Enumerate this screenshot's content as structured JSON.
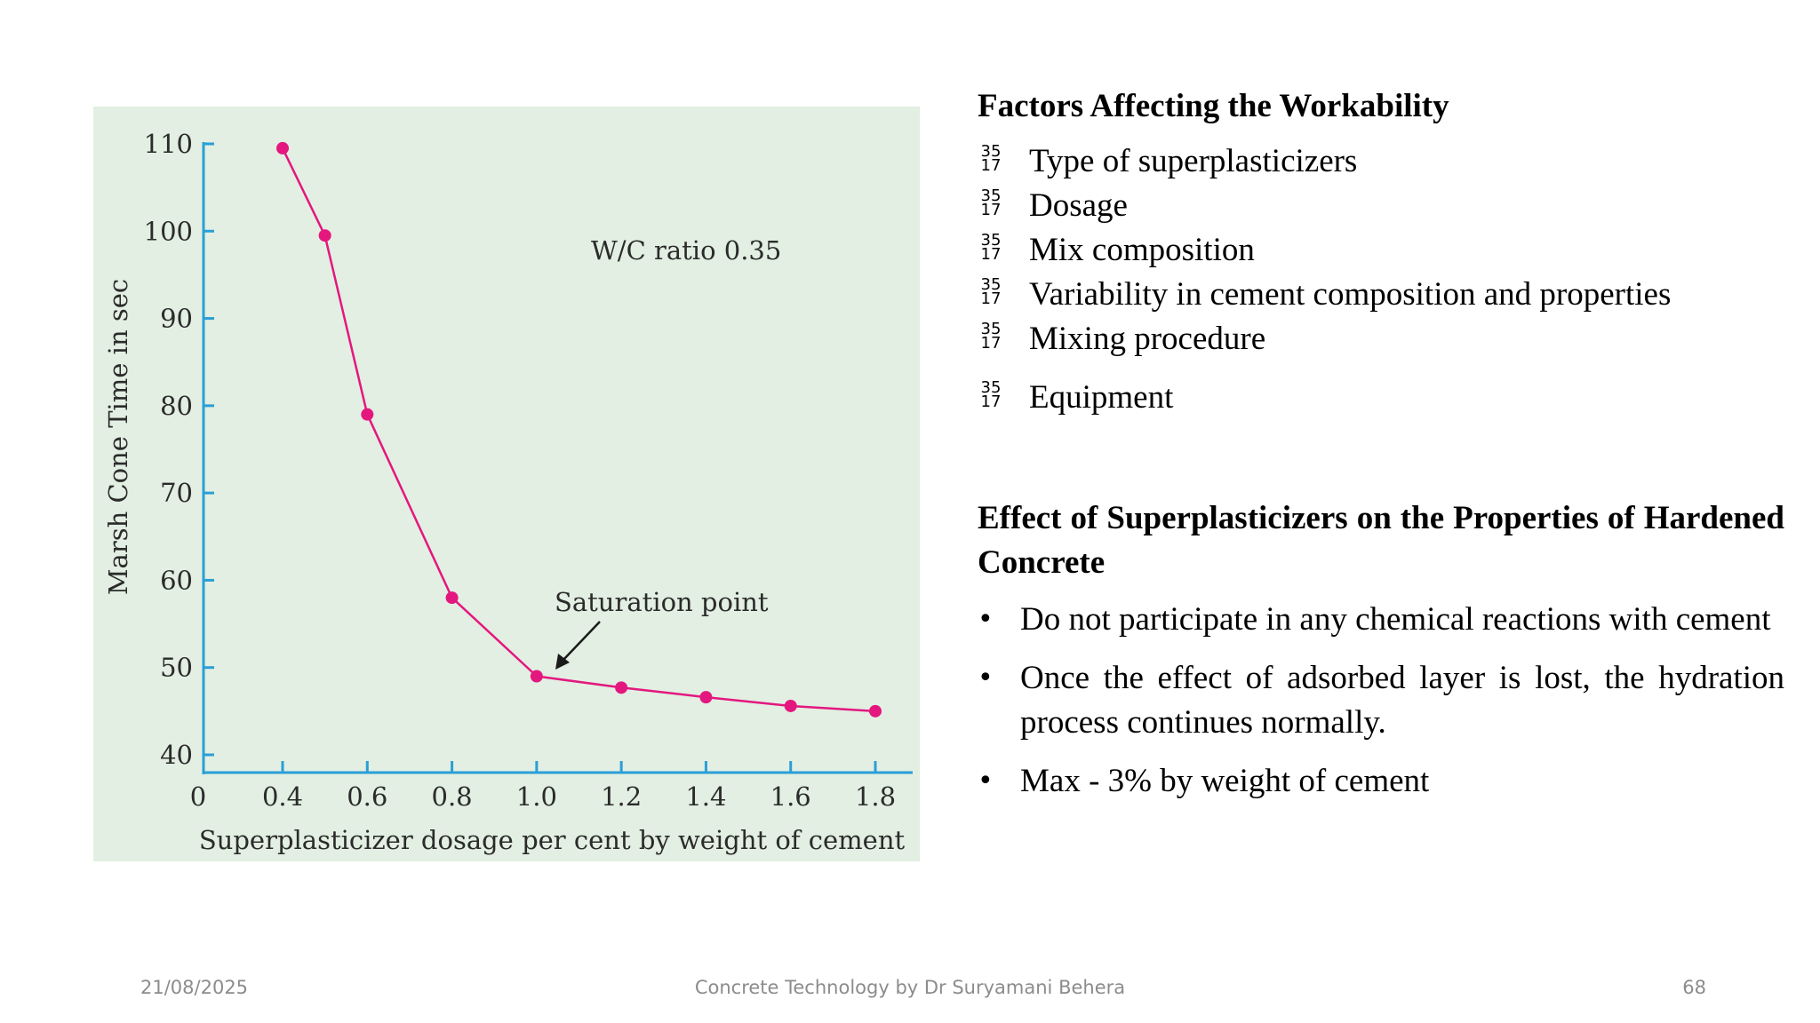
{
  "chart_data": {
    "type": "line",
    "xlabel": "Superplasticizer dosage per cent by weight of cement",
    "ylabel": "Marsh Cone Time in sec",
    "x_ticks": [
      "0",
      "0.4",
      "0.6",
      "0.8",
      "1.0",
      "1.2",
      "1.4",
      "1.6",
      "1.8"
    ],
    "y_ticks": [
      "40",
      "50",
      "60",
      "70",
      "80",
      "90",
      "100",
      "110"
    ],
    "ylim": [
      40,
      110
    ],
    "annotation_label": "W/C ratio 0.35",
    "saturation_label": "Saturation point",
    "saturation_x": 1.0,
    "line_color": "#e4177f",
    "axis_color": "#2a9fd6",
    "x": [
      0.4,
      0.5,
      0.6,
      0.8,
      1.0,
      1.2,
      1.4,
      1.6,
      1.8
    ],
    "y": [
      109.5,
      99.5,
      79,
      58,
      49,
      47.7,
      46.6,
      45.6,
      45
    ]
  },
  "factors": {
    "title": "Factors Affecting the Workability",
    "glyph_top": "35",
    "glyph_bottom": "17",
    "items": [
      "Type of superplasticizers",
      "Dosage",
      "Mix composition",
      "Variability in cement composition and properties",
      "Mixing procedure",
      "Equipment"
    ]
  },
  "effects": {
    "title": "Effect of Superplasticizers on the Properties of Hardened Concrete",
    "bullet": "•",
    "items": [
      "Do not participate in any chemical reactions with cement",
      "Once the effect of adsorbed layer is lost, the hydration process continues normally.",
      "Max - 3% by weight of cement"
    ]
  },
  "footer": {
    "date": "21/08/2025",
    "center": "Concrete Technology by Dr Suryamani Behera",
    "page": "68"
  }
}
